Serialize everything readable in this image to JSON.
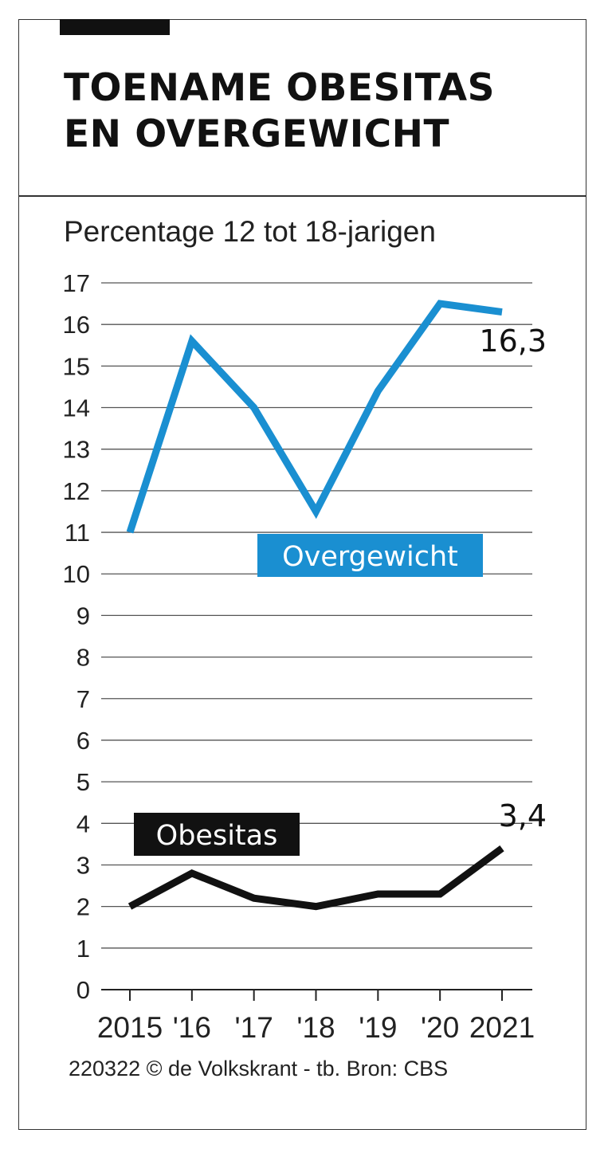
{
  "title_lines": [
    "TOENAME OBESITAS",
    "EN OVERGEWICHT"
  ],
  "subtitle": "Percentage 12 tot 18-jarigen",
  "source": "220322 © de Volkskrant - tb. Bron: CBS",
  "chart_data": {
    "type": "line",
    "x": [
      "2015",
      "'16",
      "'17",
      "'18",
      "'19",
      "'20",
      "2021"
    ],
    "ylim": [
      0,
      17
    ],
    "yticks": [
      0,
      1,
      2,
      3,
      4,
      5,
      6,
      7,
      8,
      9,
      10,
      11,
      12,
      13,
      14,
      15,
      16,
      17
    ],
    "grid": true,
    "series": [
      {
        "name": "Overgewicht",
        "color": "#1a8fd1",
        "values": [
          11.0,
          15.6,
          14.0,
          11.5,
          14.4,
          16.5,
          16.3
        ],
        "end_label": "16,3"
      },
      {
        "name": "Obesitas",
        "color": "#111111",
        "values": [
          2.0,
          2.8,
          2.2,
          2.0,
          2.3,
          2.3,
          3.4
        ],
        "end_label": "3,4"
      }
    ]
  }
}
